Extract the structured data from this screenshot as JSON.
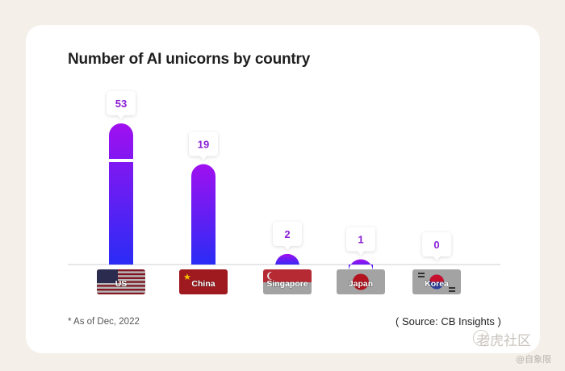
{
  "chart_data": {
    "type": "bar",
    "title": "Number of AI unicorns by country",
    "categories": [
      "US",
      "China",
      "Singapore",
      "Japan",
      "Korea"
    ],
    "values": [
      53,
      19,
      2,
      1,
      0
    ],
    "data_labels": [
      "53",
      "19",
      "2",
      "1",
      "0"
    ],
    "xlabel": "",
    "ylabel": "",
    "grid": false,
    "note": "* As of Dec, 2022",
    "source": "( Source: CB Insights )",
    "colors": {
      "bar_top": "#a010f0",
      "bar_bottom": "#2a2cf5",
      "label": "#8a1fd6"
    }
  },
  "watermark": {
    "site": "老虎社区",
    "user": "@自象限"
  }
}
